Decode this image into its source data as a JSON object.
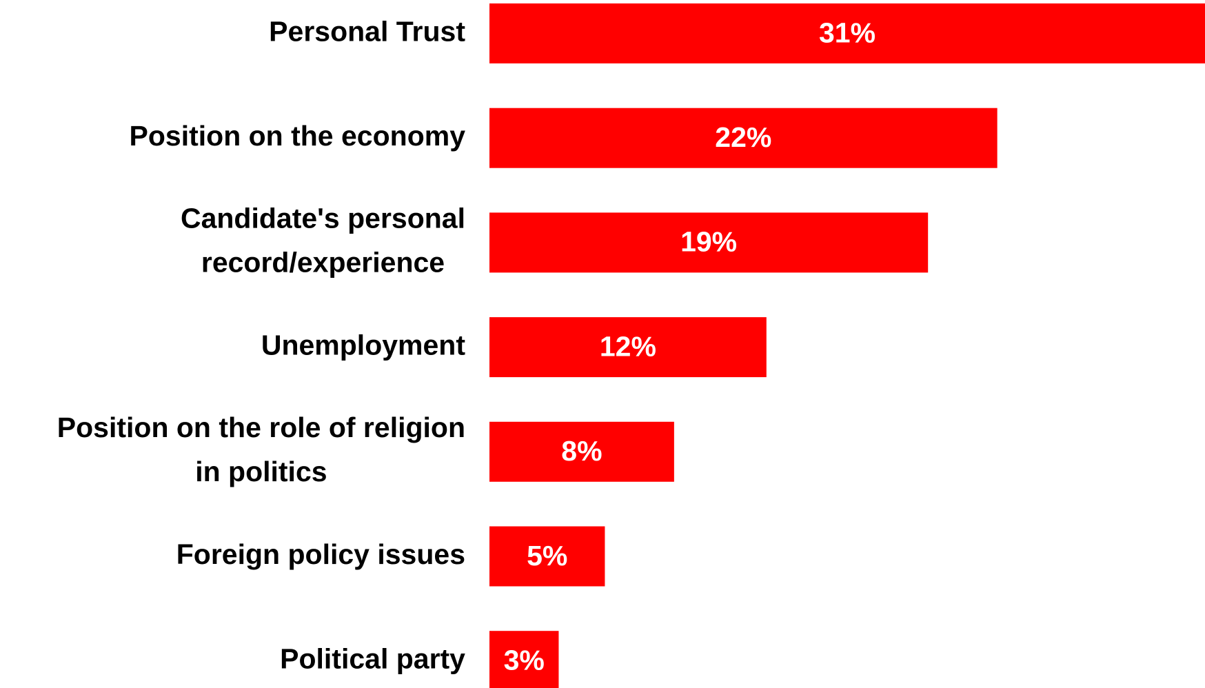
{
  "chart_data": {
    "type": "bar",
    "orientation": "horizontal",
    "categories": [
      [
        "Personal Trust"
      ],
      [
        "Position on the economy"
      ],
      [
        "Candidate's personal",
        "record/experience"
      ],
      [
        "Unemployment"
      ],
      [
        "Position on the role of religion",
        "in politics"
      ],
      [
        "Foreign policy issues"
      ],
      [
        "Political party"
      ]
    ],
    "values": [
      31,
      22,
      19,
      12,
      8,
      5,
      3
    ],
    "value_labels": [
      "31%",
      "22%",
      "19%",
      "12%",
      "8%",
      "5%",
      "3%"
    ],
    "bar_color": "#ff0000",
    "value_label_color": "#ffffff",
    "category_label_color": "#000000",
    "grid": false,
    "legend": "none",
    "title": "",
    "xlabel": "",
    "ylabel": ""
  }
}
